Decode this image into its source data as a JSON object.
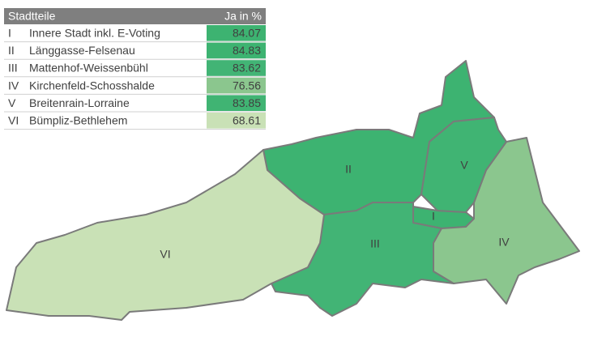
{
  "table": {
    "header": [
      "Stadtteile",
      "Ja in %"
    ],
    "rows": [
      {
        "id": "I",
        "name": "Innere Stadt inkl. E-Voting",
        "value": 84.07,
        "color": "#3db371"
      },
      {
        "id": "II",
        "name": "Länggasse-Felsenau",
        "value": 84.83,
        "color": "#3db371"
      },
      {
        "id": "III",
        "name": "Mattenhof-Weissenbühl",
        "value": 83.62,
        "color": "#42b475"
      },
      {
        "id": "IV",
        "name": "Kirchenfeld-Schosshalde",
        "value": 76.56,
        "color": "#8bc68e"
      },
      {
        "id": "V",
        "name": "Breitenrain-Lorraine",
        "value": 83.85,
        "color": "#40b473"
      },
      {
        "id": "VI",
        "name": "Bümpliz-Bethlehem",
        "value": 68.61,
        "color": "#c9e1b6"
      }
    ]
  }
}
